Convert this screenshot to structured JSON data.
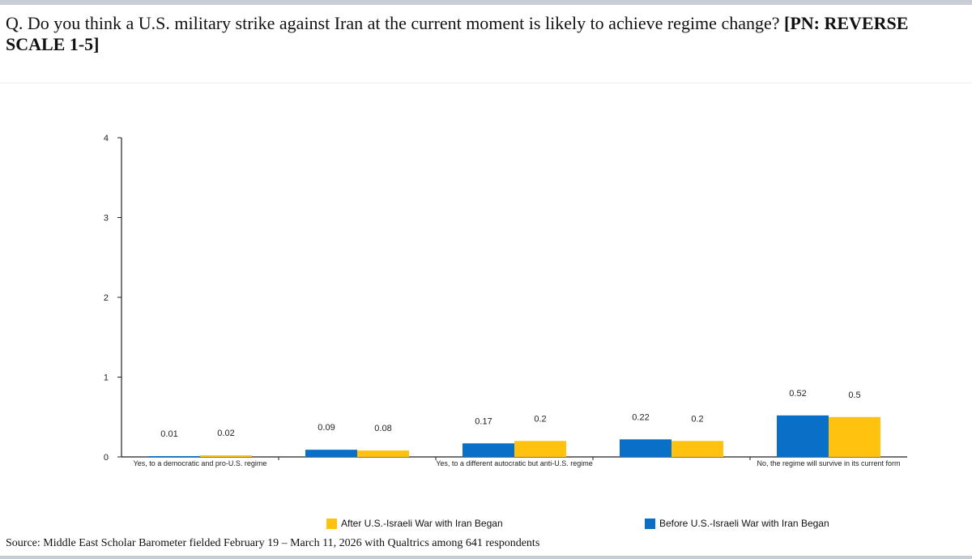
{
  "question": {
    "text": "Q. Do you think a U.S. military strike against Iran at the current moment is likely to achieve regime change? ",
    "bold": "[PN: REVERSE SCALE 1-5]"
  },
  "source": "Source: Middle East Scholar Barometer fielded February 19 – March 11, 2026 with Qualtrics among 641 respondents",
  "colors": {
    "before": "#0a6fc7",
    "after": "#ffc20e"
  },
  "chart_data": {
    "type": "bar",
    "categories": [
      "Yes, to a democratic and pro-U.S. regime",
      "",
      "Yes, to a different autocratic but anti-U.S. regime",
      "",
      "No, the regime will survive in its current form"
    ],
    "series": [
      {
        "name": "Before U.S.-Israeli War with Iran Began",
        "values": [
          0.01,
          0.09,
          0.17,
          0.22,
          0.52
        ]
      },
      {
        "name": "After U.S.-Israeli War with Iran Began",
        "values": [
          0.02,
          0.08,
          0.2,
          0.2,
          0.5
        ]
      }
    ],
    "ylim": [
      0,
      4
    ],
    "yticks": [
      0,
      1,
      2,
      3,
      4
    ],
    "grid": false,
    "legend": "bottom"
  }
}
